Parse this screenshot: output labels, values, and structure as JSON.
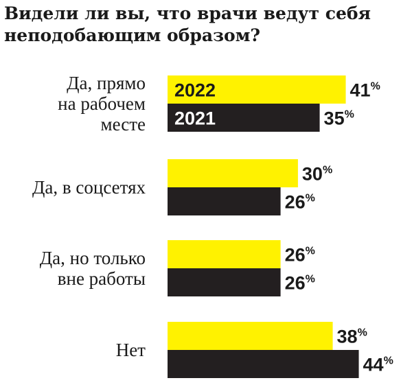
{
  "title_lines": [
    "Видели ли вы, что врачи ведут себя",
    "неподобающим образом?"
  ],
  "colors": {
    "series_2022": "#fff200",
    "series_2021": "#231f20",
    "text": "#1a1a1a"
  },
  "chart_data": {
    "type": "bar",
    "orientation": "horizontal",
    "title": "Видели ли вы, что врачи ведут себя неподобающим образом?",
    "categories": [
      [
        "Да, прямо",
        "на рабочем",
        "месте"
      ],
      [
        "Да, в соцсетях"
      ],
      [
        "Да, но только",
        "вне работы"
      ],
      [
        "Нет"
      ]
    ],
    "series": [
      {
        "name": "2022",
        "values": [
          41,
          30,
          26,
          38
        ]
      },
      {
        "name": "2021",
        "values": [
          35,
          26,
          26,
          44
        ]
      }
    ],
    "unit": "%",
    "legend": "inside first bars",
    "grid": false,
    "xlim": [
      0,
      50
    ]
  }
}
